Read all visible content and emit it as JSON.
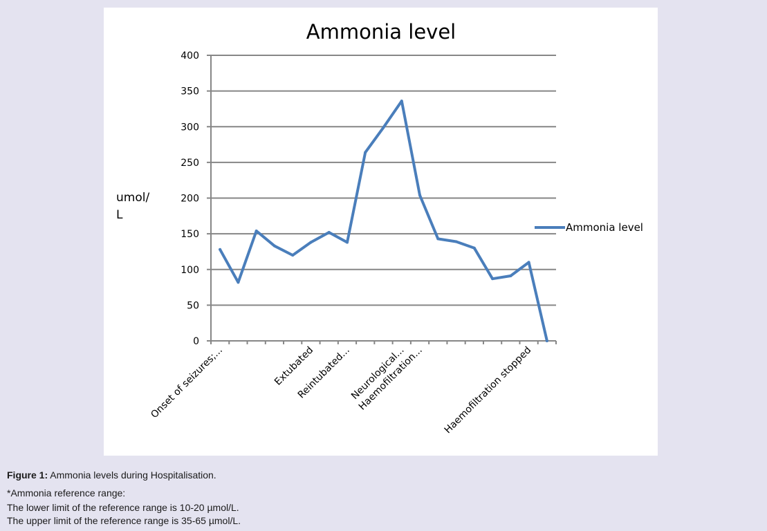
{
  "chart_data": {
    "type": "line",
    "title": "Ammonia level",
    "ylabel_line1": "umol/",
    "ylabel_line2": "L",
    "ylim": [
      0,
      400
    ],
    "yticks": [
      0,
      50,
      100,
      150,
      200,
      250,
      300,
      350,
      400
    ],
    "grid": true,
    "legend_position": "right",
    "series": [
      {
        "name": "Ammonia level",
        "color": "#4a7ebb",
        "values": [
          128,
          82,
          154,
          133,
          120,
          138,
          152,
          138,
          264,
          299,
          336,
          204,
          143,
          139,
          130,
          87,
          91,
          110,
          0
        ]
      }
    ],
    "category_labels": [
      {
        "index": 0,
        "text": "Onset of seizures;..."
      },
      {
        "index": 5,
        "text": "Extubated"
      },
      {
        "index": 7,
        "text": "Reintubated..."
      },
      {
        "index": 10,
        "text": "Neurological..."
      },
      {
        "index": 11,
        "text": "Haemofiltration..."
      },
      {
        "index": 17,
        "text": "Haemofiltration stopped"
      }
    ]
  },
  "caption": {
    "label": "Figure 1:",
    "text": " Ammonia levels during Hospitalisation."
  },
  "notes": [
    "*Ammonia reference range:",
    "The lower limit of the reference range is 10-20 µmol/L.",
    "The upper limit of the reference range is 35-65 µmol/L."
  ]
}
